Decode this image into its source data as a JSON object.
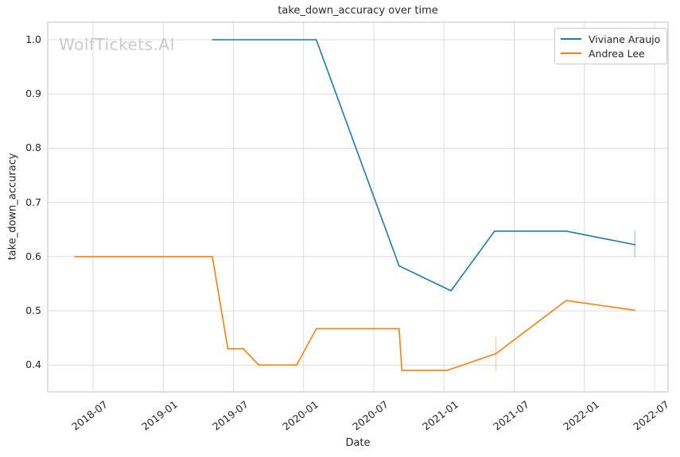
{
  "title": "take_down_accuracy over time",
  "watermark": "WolfTickets.AI",
  "chart_data": {
    "type": "line",
    "title": "take_down_accuracy over time",
    "xlabel": "Date",
    "ylabel": "take_down_accuracy",
    "grid": true,
    "legend_position": "upper right",
    "x_range": [
      2018.177,
      2022.596
    ],
    "y_range": [
      0.3506,
      1.0323
    ],
    "x_ticks": [
      {
        "value": 2018.5,
        "label": "2018-07"
      },
      {
        "value": 2019.0,
        "label": "2019-01"
      },
      {
        "value": 2019.5,
        "label": "2019-07"
      },
      {
        "value": 2020.0,
        "label": "2020-01"
      },
      {
        "value": 2020.5,
        "label": "2020-07"
      },
      {
        "value": 2021.0,
        "label": "2021-01"
      },
      {
        "value": 2021.5,
        "label": "2021-07"
      },
      {
        "value": 2022.0,
        "label": "2022-01"
      },
      {
        "value": 2022.5,
        "label": "2022-07"
      }
    ],
    "y_ticks": [
      {
        "value": 0.4,
        "label": "0.4"
      },
      {
        "value": 0.5,
        "label": "0.5"
      },
      {
        "value": 0.6,
        "label": "0.6"
      },
      {
        "value": 0.7,
        "label": "0.7"
      },
      {
        "value": 0.8,
        "label": "0.8"
      },
      {
        "value": 0.9,
        "label": "0.9"
      },
      {
        "value": 1.0,
        "label": "1.0"
      }
    ],
    "series": [
      {
        "name": "Viviane Araujo",
        "color": "#1f77b4",
        "points": [
          {
            "x": 2019.35,
            "y": 1.0,
            "approx_date": "2019-05"
          },
          {
            "x": 2020.09,
            "y": 1.0,
            "approx_date": "2020-01"
          },
          {
            "x": 2020.68,
            "y": 0.583,
            "approx_date": "2020-09"
          },
          {
            "x": 2021.05,
            "y": 0.537,
            "approx_date": "2021-01"
          },
          {
            "x": 2021.36,
            "y": 0.647,
            "approx_date": "2021-05"
          },
          {
            "x": 2021.87,
            "y": 0.647,
            "approx_date": "2021-11"
          },
          {
            "x": 2022.36,
            "y": 0.622,
            "approx_date": "2022-05"
          }
        ],
        "error_bars": [
          {
            "x": 2022.36,
            "y_low": 0.6,
            "y_high": 0.648
          }
        ]
      },
      {
        "name": "Andrea Lee",
        "color": "#ff7f0e",
        "points": [
          {
            "x": 2018.37,
            "y": 0.6,
            "approx_date": "2018-05"
          },
          {
            "x": 2019.35,
            "y": 0.6,
            "approx_date": "2019-05"
          },
          {
            "x": 2019.46,
            "y": 0.43,
            "approx_date": "2019-06"
          },
          {
            "x": 2019.57,
            "y": 0.43,
            "approx_date": "2019-08"
          },
          {
            "x": 2019.68,
            "y": 0.4,
            "approx_date": "2019-09"
          },
          {
            "x": 2019.95,
            "y": 0.4,
            "approx_date": "2019-12"
          },
          {
            "x": 2020.09,
            "y": 0.467,
            "approx_date": "2020-01"
          },
          {
            "x": 2020.68,
            "y": 0.467,
            "approx_date": "2020-08"
          },
          {
            "x": 2020.7,
            "y": 0.39,
            "approx_date": "2020-09"
          },
          {
            "x": 2021.02,
            "y": 0.39,
            "approx_date": "2021-01"
          },
          {
            "x": 2021.37,
            "y": 0.421,
            "approx_date": "2021-05"
          },
          {
            "x": 2021.87,
            "y": 0.519,
            "approx_date": "2021-11"
          },
          {
            "x": 2022.36,
            "y": 0.501,
            "approx_date": "2022-05"
          }
        ],
        "error_bars": [
          {
            "x": 2021.37,
            "y_low": 0.389,
            "y_high": 0.452
          }
        ]
      }
    ]
  },
  "legend": {
    "items": [
      {
        "label": "Viviane Araujo",
        "color": "#1f77b4"
      },
      {
        "label": "Andrea Lee",
        "color": "#ff7f0e"
      }
    ]
  },
  "colors": {
    "background": "#ffffff",
    "grid": "#dcdcdc",
    "plot_border": "#cccccc",
    "text": "#262626",
    "watermark": "#cbcbcb"
  }
}
